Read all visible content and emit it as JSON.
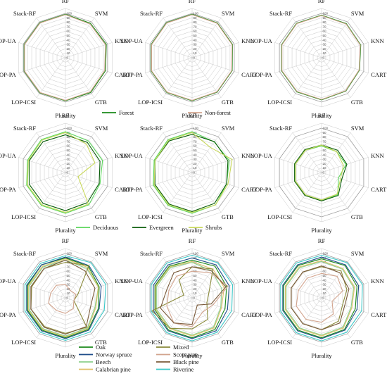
{
  "chart_data": [
    {
      "type": "radar",
      "row": 0,
      "col": 0,
      "axes": [
        "RF",
        "SVM",
        "KNN",
        "CART",
        "GTB",
        "Plurality",
        "LOP-ICSI",
        "LOP-PA",
        "LOP-UA",
        "Stack-RF"
      ],
      "rlim": [
        0,
        100
      ],
      "ticks": [
        0,
        10,
        20,
        30,
        40,
        50,
        60,
        70,
        80,
        90,
        100
      ],
      "series": [
        {
          "name": "Forest",
          "color": "#1a8a1a",
          "values": [
            98,
            96,
            97,
            95,
            97,
            97,
            98,
            98,
            98,
            98
          ]
        },
        {
          "name": "Non-forest",
          "color": "#d2a48e",
          "values": [
            97,
            94,
            95,
            93,
            95,
            96,
            97,
            97,
            97,
            97
          ]
        }
      ]
    },
    {
      "type": "radar",
      "row": 0,
      "col": 1,
      "axes": [
        "RF",
        "SVM",
        "KNN",
        "CART",
        "GTB",
        "Plurality",
        "LOP-ICSI",
        "LOP-PA",
        "LOP-UA",
        "Stack-RF"
      ],
      "rlim": [
        0,
        100
      ],
      "ticks": [
        0,
        10,
        20,
        30,
        40,
        50,
        60,
        70,
        80,
        90,
        100
      ],
      "series": [
        {
          "name": "Forest",
          "color": "#1a8a1a",
          "values": [
            98,
            97,
            96,
            95,
            96,
            97,
            97,
            97,
            97,
            98
          ]
        },
        {
          "name": "Non-forest",
          "color": "#d2a48e",
          "values": [
            97,
            96,
            95,
            94,
            95,
            96,
            96,
            96,
            96,
            97
          ]
        }
      ]
    },
    {
      "type": "radar",
      "row": 0,
      "col": 2,
      "axes": [
        "RF",
        "SVM",
        "KNN",
        "CART",
        "GTB",
        "Plurality",
        "LOP-ICSI",
        "LOP-PA",
        "LOP-UA",
        "Stack-RF"
      ],
      "rlim": [
        0,
        100
      ],
      "ticks": [
        0,
        10,
        20,
        30,
        40,
        50,
        60,
        70,
        80,
        90,
        100
      ],
      "series": [
        {
          "name": "Forest",
          "color": "#1a8a1a",
          "values": [
            96,
            95,
            93,
            90,
            93,
            95,
            95,
            95,
            95,
            96
          ]
        },
        {
          "name": "Non-forest",
          "color": "#d2a48e",
          "values": [
            95,
            94,
            92,
            89,
            92,
            94,
            94,
            94,
            94,
            95
          ]
        }
      ]
    },
    {
      "type": "radar",
      "row": 1,
      "col": 0,
      "axes": [
        "RF",
        "SVM",
        "KNN",
        "CART",
        "GTB",
        "Plurality",
        "LOP-ICSI",
        "LOP-PA",
        "LOP-UA",
        "Stack-RF"
      ],
      "rlim": [
        0,
        100
      ],
      "ticks": [
        0,
        10,
        20,
        30,
        40,
        50,
        60,
        70,
        80,
        90,
        100
      ],
      "series": [
        {
          "name": "Deciduous",
          "color": "#5cd65c",
          "values": [
            92,
            88,
            88,
            82,
            90,
            92,
            92,
            92,
            90,
            92
          ]
        },
        {
          "name": "Evergreen",
          "color": "#0b5e0b",
          "values": [
            85,
            84,
            82,
            80,
            84,
            86,
            86,
            86,
            86,
            86
          ]
        },
        {
          "name": "Shrubs",
          "color": "#c8d85a",
          "values": [
            90,
            80,
            70,
            30,
            88,
            90,
            90,
            90,
            88,
            90
          ]
        }
      ]
    },
    {
      "type": "radar",
      "row": 1,
      "col": 1,
      "axes": [
        "RF",
        "SVM",
        "KNN",
        "CART",
        "GTB",
        "Plurality",
        "LOP-ICSI",
        "LOP-PA",
        "LOP-UA",
        "Stack-RF"
      ],
      "rlim": [
        0,
        100
      ],
      "ticks": [
        0,
        10,
        20,
        30,
        40,
        50,
        60,
        70,
        80,
        90,
        100
      ],
      "series": [
        {
          "name": "Deciduous",
          "color": "#5cd65c",
          "values": [
            92,
            85,
            88,
            82,
            90,
            92,
            92,
            92,
            90,
            92
          ]
        },
        {
          "name": "Evergreen",
          "color": "#0b5e0b",
          "values": [
            86,
            86,
            85,
            82,
            86,
            88,
            88,
            88,
            88,
            88
          ]
        },
        {
          "name": "Shrubs",
          "color": "#c8d85a",
          "values": [
            90,
            70,
            95,
            85,
            90,
            90,
            90,
            90,
            88,
            90
          ]
        }
      ]
    },
    {
      "type": "radar",
      "row": 1,
      "col": 2,
      "axes": [
        "RF",
        "SVM",
        "KNN",
        "CART",
        "GTB",
        "Plurality",
        "LOP-ICSI",
        "LOP-PA",
        "LOP-UA",
        "Stack-RF"
      ],
      "rlim": [
        0,
        100
      ],
      "ticks": [
        0,
        10,
        20,
        30,
        40,
        50,
        60,
        70,
        80,
        90,
        100
      ],
      "series": [
        {
          "name": "Deciduous",
          "color": "#5cd65c",
          "values": [
            60,
            58,
            58,
            40,
            62,
            62,
            62,
            62,
            62,
            62
          ]
        },
        {
          "name": "Evergreen",
          "color": "#0b5e0b",
          "values": [
            62,
            62,
            60,
            48,
            64,
            64,
            64,
            64,
            64,
            64
          ]
        },
        {
          "name": "Shrubs",
          "color": "#c8d85a",
          "values": [
            62,
            58,
            52,
            45,
            60,
            62,
            62,
            62,
            62,
            62
          ]
        }
      ]
    },
    {
      "type": "radar",
      "row": 2,
      "col": 0,
      "axes": [
        "RF",
        "SVM",
        "KNN",
        "CART",
        "GTB",
        "Plurality",
        "LOP-ICSI",
        "LOP-PA",
        "LOP-UA",
        "Stack-RF"
      ],
      "rlim": [
        0,
        100
      ],
      "ticks": [
        0,
        10,
        20,
        30,
        40,
        50,
        60,
        70,
        80,
        90,
        100
      ],
      "series": [
        {
          "name": "Oak",
          "color": "#1a8a1a",
          "values": [
            90,
            88,
            80,
            78,
            88,
            90,
            90,
            90,
            90,
            92
          ]
        },
        {
          "name": "Norway spruce",
          "color": "#1f4e8a",
          "values": [
            92,
            90,
            85,
            80,
            90,
            92,
            92,
            92,
            92,
            92
          ]
        },
        {
          "name": "Beech",
          "color": "#8cd08c",
          "values": [
            85,
            82,
            78,
            70,
            84,
            86,
            86,
            86,
            86,
            86
          ]
        },
        {
          "name": "Calabrian pine",
          "color": "#e0c06a",
          "values": [
            88,
            85,
            78,
            72,
            86,
            88,
            88,
            88,
            88,
            88
          ]
        },
        {
          "name": "Mixed",
          "color": "#8a8a3a",
          "values": [
            80,
            90,
            30,
            20,
            82,
            80,
            80,
            82,
            80,
            82
          ]
        },
        {
          "name": "Scots pine",
          "color": "#d2a48e",
          "values": [
            30,
            20,
            25,
            20,
            30,
            35,
            35,
            40,
            35,
            35
          ]
        },
        {
          "name": "Black pine",
          "color": "#7a5a3a",
          "values": [
            85,
            75,
            70,
            60,
            80,
            82,
            82,
            82,
            82,
            82
          ]
        },
        {
          "name": "Riverine",
          "color": "#3cc8c8",
          "values": [
            95,
            98,
            96,
            92,
            95,
            96,
            96,
            96,
            96,
            96
          ]
        }
      ]
    },
    {
      "type": "radar",
      "row": 2,
      "col": 1,
      "axes": [
        "RF",
        "SVM",
        "KNN",
        "CART",
        "GTB",
        "Plurality",
        "LOP-ICSI",
        "LOP-PA",
        "LOP-UA",
        "Stack-RF"
      ],
      "rlim": [
        0,
        100
      ],
      "ticks": [
        0,
        10,
        20,
        30,
        40,
        50,
        60,
        70,
        80,
        90,
        100
      ],
      "series": [
        {
          "name": "Oak",
          "color": "#1a8a1a",
          "values": [
            85,
            88,
            82,
            78,
            88,
            90,
            90,
            88,
            88,
            88
          ]
        },
        {
          "name": "Norway spruce",
          "color": "#1f4e8a",
          "values": [
            90,
            92,
            88,
            84,
            92,
            92,
            92,
            92,
            92,
            92
          ]
        },
        {
          "name": "Beech",
          "color": "#8cd08c",
          "values": [
            80,
            75,
            70,
            68,
            82,
            84,
            84,
            84,
            84,
            84
          ]
        },
        {
          "name": "Calabrian pine",
          "color": "#e0c06a",
          "values": [
            82,
            80,
            76,
            70,
            84,
            86,
            86,
            86,
            86,
            86
          ]
        },
        {
          "name": "Mixed",
          "color": "#8a8a3a",
          "values": [
            70,
            80,
            40,
            35,
            60,
            70,
            85,
            95,
            20,
            50
          ]
        },
        {
          "name": "Scots pine",
          "color": "#d2a48e",
          "values": [
            60,
            70,
            85,
            50,
            40,
            65,
            70,
            60,
            55,
            60
          ]
        },
        {
          "name": "Black pine",
          "color": "#7a5a3a",
          "values": [
            70,
            75,
            80,
            45,
            20,
            60,
            70,
            75,
            60,
            70
          ]
        },
        {
          "name": "Riverine",
          "color": "#3cc8c8",
          "values": [
            96,
            98,
            96,
            94,
            96,
            97,
            97,
            97,
            97,
            97
          ]
        }
      ]
    },
    {
      "type": "radar",
      "row": 2,
      "col": 2,
      "axes": [
        "RF",
        "SVM",
        "KNN",
        "CART",
        "GTB",
        "Plurality",
        "LOP-ICSI",
        "LOP-PA",
        "LOP-UA",
        "Stack-RF"
      ],
      "rlim": [
        0,
        100
      ],
      "ticks": [
        0,
        10,
        20,
        30,
        40,
        50,
        60,
        70,
        80,
        90,
        100
      ],
      "series": [
        {
          "name": "Oak",
          "color": "#1a8a1a",
          "values": [
            88,
            90,
            84,
            80,
            88,
            90,
            90,
            90,
            90,
            90
          ]
        },
        {
          "name": "Norway spruce",
          "color": "#1f4e8a",
          "values": [
            92,
            92,
            88,
            84,
            90,
            92,
            92,
            92,
            92,
            92
          ]
        },
        {
          "name": "Beech",
          "color": "#8cd08c",
          "values": [
            82,
            80,
            76,
            70,
            82,
            84,
            84,
            84,
            84,
            84
          ]
        },
        {
          "name": "Calabrian pine",
          "color": "#e0c06a",
          "values": [
            84,
            82,
            78,
            72,
            84,
            86,
            86,
            86,
            86,
            86
          ]
        },
        {
          "name": "Mixed",
          "color": "#8a8a3a",
          "values": [
            70,
            75,
            60,
            50,
            65,
            72,
            72,
            72,
            72,
            72
          ]
        },
        {
          "name": "Scots pine",
          "color": "#d2a48e",
          "values": [
            55,
            60,
            50,
            25,
            45,
            55,
            60,
            60,
            55,
            55
          ]
        },
        {
          "name": "Black pine",
          "color": "#7a5a3a",
          "values": [
            72,
            70,
            65,
            55,
            70,
            72,
            72,
            72,
            72,
            72
          ]
        },
        {
          "name": "Riverine",
          "color": "#3cc8c8",
          "values": [
            96,
            98,
            97,
            95,
            96,
            97,
            97,
            97,
            97,
            97
          ]
        }
      ]
    }
  ],
  "legends": [
    {
      "row": 0,
      "layout": "single-row",
      "entries": [
        {
          "name": "Forest",
          "color": "#1a8a1a"
        },
        {
          "name": "Non-forest",
          "color": "#d2a48e"
        }
      ]
    },
    {
      "row": 1,
      "layout": "single-row",
      "entries": [
        {
          "name": "Deciduous",
          "color": "#5cd65c"
        },
        {
          "name": "Evergreen",
          "color": "#0b5e0b"
        },
        {
          "name": "Shrubs",
          "color": "#c8d85a"
        }
      ]
    },
    {
      "row": 2,
      "layout": "two-column",
      "entries": [
        {
          "name": "Oak",
          "color": "#1a8a1a"
        },
        {
          "name": "Norway spruce",
          "color": "#1f4e8a"
        },
        {
          "name": "Beech",
          "color": "#8cd08c"
        },
        {
          "name": "Calabrian pine",
          "color": "#e0c06a"
        },
        {
          "name": "Mixed",
          "color": "#8a8a3a"
        },
        {
          "name": "Scots pine",
          "color": "#d2a48e"
        },
        {
          "name": "Black pine",
          "color": "#7a5a3a"
        },
        {
          "name": "Riverine",
          "color": "#3cc8c8"
        }
      ]
    }
  ]
}
